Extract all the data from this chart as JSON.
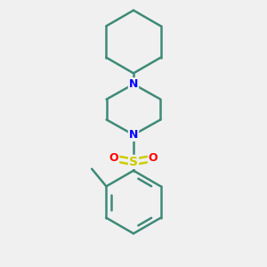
{
  "background_color": "#f0f0f0",
  "bond_color": "#3d8a78",
  "N_color": "#0000ff",
  "S_color": "#cccc00",
  "O_color": "#ff0000",
  "bond_width": 1.8,
  "figsize": [
    3.0,
    3.0
  ],
  "dpi": 100,
  "xlim": [
    -1.6,
    1.6
  ],
  "ylim": [
    -2.2,
    3.8
  ]
}
